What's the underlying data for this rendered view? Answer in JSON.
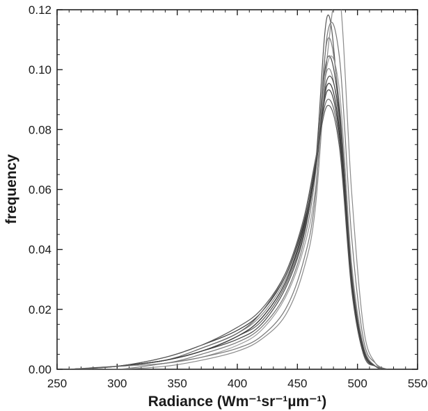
{
  "chart_data": {
    "type": "line",
    "title": "",
    "xlabel": "Radiance (Wm⁻¹sr⁻¹µm⁻¹)",
    "ylabel": "frequency",
    "xlim": [
      250,
      550
    ],
    "ylim": [
      0,
      0.12
    ],
    "x_ticks": [
      "250",
      "300",
      "350",
      "400",
      "450",
      "500",
      "550"
    ],
    "y_ticks": [
      "0.00",
      "0.02",
      "0.04",
      "0.06",
      "0.08",
      "0.10",
      "0.12"
    ],
    "grid": false,
    "legend": "none",
    "line_color": "#3a3a3a",
    "x": [
      260,
      300,
      340,
      370,
      400,
      420,
      440,
      455,
      465,
      475,
      485,
      495,
      505,
      515,
      525
    ],
    "series": [
      {
        "values": [
          0,
          0.001,
          0.003,
          0.006,
          0.011,
          0.016,
          0.028,
          0.045,
          0.068,
          0.118,
          0.085,
          0.03,
          0.006,
          0.001,
          0
        ]
      },
      {
        "values": [
          0,
          0.001,
          0.002,
          0.005,
          0.009,
          0.014,
          0.025,
          0.042,
          0.065,
          0.11,
          0.088,
          0.034,
          0.008,
          0.001,
          0
        ]
      },
      {
        "values": [
          0,
          0.001,
          0.003,
          0.006,
          0.01,
          0.015,
          0.027,
          0.044,
          0.068,
          0.104,
          0.086,
          0.032,
          0.007,
          0.001,
          0
        ]
      },
      {
        "values": [
          0,
          0.001,
          0.003,
          0.007,
          0.012,
          0.018,
          0.03,
          0.047,
          0.068,
          0.1,
          0.082,
          0.03,
          0.006,
          0.001,
          0
        ]
      },
      {
        "values": [
          0,
          0.001,
          0.004,
          0.008,
          0.013,
          0.019,
          0.031,
          0.048,
          0.067,
          0.095,
          0.08,
          0.029,
          0.006,
          0.001,
          0
        ]
      },
      {
        "values": [
          0,
          0.001,
          0.003,
          0.007,
          0.012,
          0.019,
          0.032,
          0.05,
          0.07,
          0.09,
          0.076,
          0.028,
          0.005,
          0.001,
          0
        ]
      },
      {
        "values": [
          0,
          0.001,
          0.002,
          0.004,
          0.008,
          0.013,
          0.024,
          0.04,
          0.06,
          0.102,
          0.093,
          0.036,
          0.008,
          0.001,
          0
        ]
      },
      {
        "values": [
          0,
          0.001,
          0.003,
          0.006,
          0.011,
          0.017,
          0.029,
          0.046,
          0.066,
          0.097,
          0.084,
          0.031,
          0.007,
          0.001,
          0
        ]
      },
      {
        "values": [
          0,
          0.0,
          0.002,
          0.004,
          0.007,
          0.011,
          0.02,
          0.036,
          0.058,
          0.112,
          0.104,
          0.045,
          0.01,
          0.002,
          0
        ]
      },
      {
        "values": [
          0,
          0.0,
          0.001,
          0.003,
          0.006,
          0.01,
          0.018,
          0.033,
          0.054,
          0.105,
          0.125,
          0.06,
          0.014,
          0.002,
          0
        ]
      },
      {
        "values": [
          0,
          0.001,
          0.003,
          0.006,
          0.011,
          0.017,
          0.029,
          0.047,
          0.068,
          0.093,
          0.078,
          0.029,
          0.006,
          0.001,
          0
        ]
      },
      {
        "values": [
          0,
          0.001,
          0.004,
          0.008,
          0.014,
          0.02,
          0.032,
          0.049,
          0.069,
          0.088,
          0.074,
          0.027,
          0.005,
          0.001,
          0
        ]
      }
    ]
  }
}
